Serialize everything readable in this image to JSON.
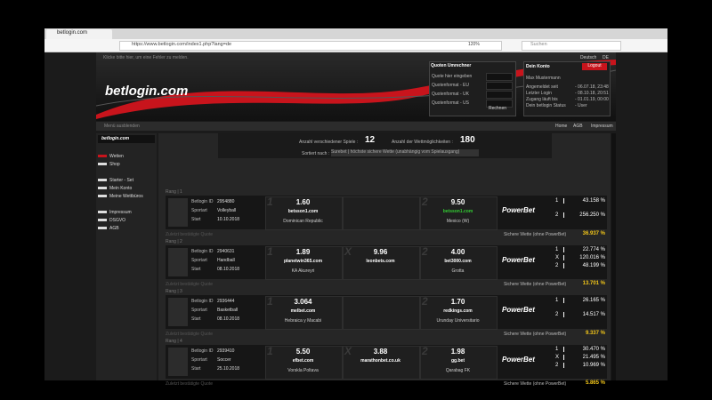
{
  "browser": {
    "tab_title": "betlogin.com",
    "url": "https://www.betlogin.com/index1.php?lang=de",
    "zoom": "120%",
    "search": "Suchen"
  },
  "header": {
    "notice": "Klicke bitte hier, um eine Fehler zu melden.",
    "languages": [
      "Deutsch",
      "DE"
    ],
    "logo": "betlogin.com"
  },
  "converter": {
    "title": "Quoten Umrechner",
    "rows": [
      "Quote hier eingeben",
      "Quotenformat - EU",
      "Quotenformat - UK",
      "Quotenformat - US"
    ],
    "button": "Rechnen"
  },
  "account": {
    "title": "Dein Konto",
    "logout": "Logout",
    "name": "Max Mustermann",
    "rows": [
      [
        "Angemeldet seit",
        "- 06.07.18, 23:48"
      ],
      [
        "Letzter Login",
        "- 08.10.18, 20:51"
      ],
      [
        "Zugang läuft bis",
        "- 01.01.19, 00:00"
      ],
      [
        "Dein betlogin Status",
        "- User"
      ]
    ]
  },
  "nav": {
    "hide_menu": "Menü ausblenden",
    "links": [
      "Home",
      "AGB",
      "Impressum"
    ]
  },
  "sidebar": {
    "logo": "betlogin.com",
    "items": [
      [
        "Wetten",
        "Shop"
      ],
      [
        "Starter - Set",
        "Mein Konto",
        "Meine Wettbüros"
      ],
      [
        "Impressum",
        "DSGVO",
        "AGB"
      ]
    ]
  },
  "stats": {
    "games_label": "Anzahl verschiedener Spiele :",
    "games": "12",
    "bets_label": "Anzahl der Wettmöglichkeiten :",
    "bets": "180",
    "sort_label": "Sortiert nach :",
    "sort_value": "Surebet | höchste sichere Wette (unabhängig vom Spielausgang)"
  },
  "labels": {
    "id": "Betlogin ID",
    "sport": "Sportart",
    "start": "Start",
    "sure": "Sichere Wette (ohne PowerBet)",
    "powerbet": "PowerBet",
    "footer": "Zuletzt bestätigte Quote"
  },
  "bets": [
    {
      "rank": "Rang | 1",
      "id": "2954880",
      "sport": "Volleyball",
      "start": "10.10.2018",
      "outcomes": [
        {
          "mark": "1",
          "odd": "1.60",
          "bookie": "betsson1.com",
          "team": "Dominican Republic"
        },
        null,
        {
          "mark": "2",
          "odd": "9.50",
          "bookie": "betsson1.com",
          "team": "Mexico (W)"
        }
      ],
      "results": [
        [
          "1",
          "43.158 %"
        ],
        [
          "2",
          "256.250 %"
        ]
      ],
      "sure": "36.937 %"
    },
    {
      "rank": "Rang | 2",
      "id": "2940631",
      "sport": "Handball",
      "start": "08.10.2018",
      "outcomes": [
        {
          "mark": "1",
          "odd": "1.89",
          "bookie": "planetwin365.com",
          "team": "KA Akureyri"
        },
        {
          "mark": "X",
          "odd": "9.96",
          "bookie": "leonbets.com"
        },
        {
          "mark": "2",
          "odd": "4.00",
          "bookie": "bet3000.com",
          "team": "Grotta"
        }
      ],
      "results": [
        [
          "1",
          "22.774 %"
        ],
        [
          "X",
          "120.016 %"
        ],
        [
          "2",
          "48.199 %"
        ]
      ],
      "sure": "13.701 %"
    },
    {
      "rank": "Rang | 3",
      "id": "2936444",
      "sport": "Basketball",
      "start": "08.10.2018",
      "outcomes": [
        {
          "mark": "1",
          "odd": "3.064",
          "bookie": "melbet.com",
          "team": "Hebraica y Macabi"
        },
        null,
        {
          "mark": "2",
          "odd": "1.70",
          "bookie": "redkings.com",
          "team": "Urunday Universitario"
        }
      ],
      "results": [
        [
          "1",
          "26.165 %"
        ],
        [
          "2",
          "14.517 %"
        ]
      ],
      "sure": "9.337 %"
    },
    {
      "rank": "Rang | 4",
      "id": "2939410",
      "sport": "Soccer",
      "start": "25.10.2018",
      "outcomes": [
        {
          "mark": "1",
          "odd": "5.50",
          "bookie": "efbet.com",
          "team": "Vorskla Poltava"
        },
        {
          "mark": "X",
          "odd": "3.88",
          "bookie": "marathonbet.co.uk"
        },
        {
          "mark": "2",
          "odd": "1.98",
          "bookie": "gg.bet",
          "team": "Qarabag FK"
        }
      ],
      "results": [
        [
          "1",
          "30.470 %"
        ],
        [
          "X",
          "21.495 %"
        ],
        [
          "2",
          "10.969 %"
        ]
      ],
      "sure": "5.865 %"
    }
  ]
}
